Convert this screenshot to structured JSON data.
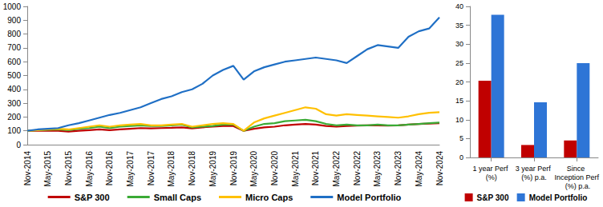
{
  "chart_data": [
    {
      "type": "line",
      "categories": [
        "Nov-2014",
        null,
        "May-2015",
        null,
        "Nov-2015",
        null,
        "May-2016",
        null,
        "Nov-2016",
        null,
        "May-2017",
        null,
        "Nov-2017",
        null,
        "May-2018",
        null,
        "Nov-2018",
        null,
        "May-2019",
        null,
        "Nov-2019",
        null,
        "May-2020",
        null,
        "Nov-2020",
        null,
        "May-2021",
        null,
        "Nov-2021",
        null,
        "May-2022",
        null,
        "Nov-2022",
        null,
        "May-2023",
        null,
        "Nov-2023",
        null,
        "May-2024",
        null,
        "Nov-2024"
      ],
      "series": [
        {
          "name": "S&P 300",
          "color": "#c00000",
          "values": [
            100,
            100,
            102,
            100,
            95,
            100,
            105,
            110,
            105,
            110,
            115,
            120,
            118,
            120,
            122,
            125,
            118,
            125,
            130,
            135,
            135,
            100,
            115,
            125,
            130,
            140,
            145,
            150,
            145,
            135,
            130,
            135,
            138,
            140,
            140,
            138,
            140,
            145,
            150,
            152,
            155
          ]
        },
        {
          "name": "Small Caps",
          "color": "#3aaa35",
          "values": [
            100,
            105,
            108,
            110,
            105,
            115,
            120,
            130,
            120,
            130,
            135,
            140,
            135,
            135,
            140,
            145,
            125,
            130,
            135,
            145,
            145,
            100,
            130,
            150,
            155,
            170,
            175,
            180,
            170,
            150,
            140,
            145,
            140,
            140,
            145,
            140,
            140,
            145,
            150,
            155,
            160
          ]
        },
        {
          "name": "Micro Caps",
          "color": "#ffc000",
          "values": [
            100,
            105,
            110,
            115,
            110,
            120,
            130,
            140,
            130,
            140,
            145,
            150,
            140,
            140,
            145,
            150,
            130,
            140,
            150,
            155,
            150,
            100,
            160,
            190,
            210,
            230,
            250,
            270,
            260,
            220,
            210,
            220,
            215,
            210,
            205,
            200,
            195,
            205,
            220,
            230,
            235
          ]
        },
        {
          "name": "Model Portfolio",
          "color": "#1f6fc5",
          "values": [
            100,
            110,
            115,
            120,
            140,
            155,
            175,
            195,
            215,
            230,
            250,
            270,
            300,
            330,
            350,
            380,
            400,
            440,
            500,
            540,
            570,
            470,
            530,
            560,
            580,
            600,
            610,
            620,
            630,
            620,
            610,
            590,
            640,
            690,
            720,
            710,
            700,
            780,
            820,
            840,
            920
          ]
        }
      ],
      "ylim": [
        0,
        1000
      ],
      "yticks": [
        0,
        100,
        200,
        300,
        400,
        500,
        600,
        700,
        800,
        900,
        1000
      ],
      "grid": false,
      "legend": "bottom"
    },
    {
      "type": "bar",
      "categories": [
        "1 year Perf (%)",
        "3 year Perf (%) p.a.",
        "Since Inception Perf (%) p.a."
      ],
      "series": [
        {
          "name": "S&P 300",
          "color": "#c00000",
          "values": [
            20.3,
            3.3,
            4.5
          ]
        },
        {
          "name": "Model Portfolio",
          "color": "#2e75d6",
          "values": [
            37.8,
            14.6,
            25.0
          ]
        }
      ],
      "ylim": [
        0,
        40
      ],
      "yticks": [
        0,
        5,
        10,
        15,
        20,
        25,
        30,
        35,
        40
      ],
      "grid": false,
      "legend": "bottom"
    }
  ]
}
